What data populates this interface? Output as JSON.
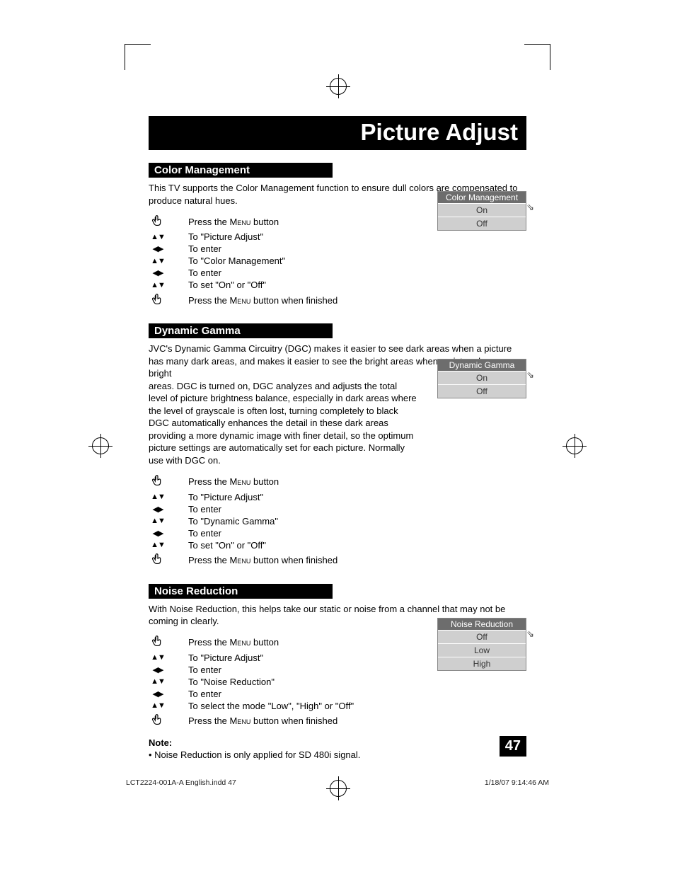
{
  "pageTitle": "Picture Adjust",
  "pageNumber": "47",
  "footer": {
    "file": "LCT2224-001A-A English.indd   47",
    "timestamp": "1/18/07   9:14:46 AM"
  },
  "sections": {
    "color": {
      "header": "Color Management",
      "desc": "This TV supports the Color Management function to ensure dull colors are compensated to produce natural hues.",
      "osd": {
        "title": "Color Management",
        "rows": [
          "On",
          "Off"
        ]
      },
      "steps": [
        {
          "icon": "hand",
          "prefix": "Press the ",
          "menu": "Menu",
          "suffix": " button"
        },
        {
          "icon": "ud",
          "text": "To \"Picture Adjust\""
        },
        {
          "icon": "lr",
          "text": "To enter"
        },
        {
          "icon": "ud",
          "text": "To \"Color Management\""
        },
        {
          "icon": "lr",
          "text": "To enter"
        },
        {
          "icon": "ud",
          "text": "To set \"On\" or \"Off\""
        },
        {
          "icon": "hand",
          "prefix": "Press the ",
          "menu": "Menu",
          "suffix": " button when finished"
        }
      ]
    },
    "gamma": {
      "header": "Dynamic Gamma",
      "desc1": "JVC's Dynamic Gamma Circuitry (DGC) makes it easier to see dark areas when a picture has many dark areas, and makes it easier to see the bright areas when a picture has many bright ",
      "desc2": "areas.  DGC is turned on, DGC analyzes and adjusts the total level of picture brightness balance, especially in dark areas where the level of grayscale is often lost, turning completely to black DGC automatically enhances the detail in these dark areas providing a more dynamic image with finer detail, so the optimum picture settings are automatically set for each picture.  Normally use with DGC on.",
      "osd": {
        "title": "Dynamic Gamma",
        "rows": [
          "On",
          "Off"
        ]
      },
      "steps": [
        {
          "icon": "hand",
          "prefix": "Press the ",
          "menu": "Menu",
          "suffix": " button"
        },
        {
          "icon": "ud",
          "text": "To \"Picture Adjust\""
        },
        {
          "icon": "lr",
          "text": "To enter"
        },
        {
          "icon": "ud",
          "text": "To \"Dynamic Gamma\""
        },
        {
          "icon": "lr",
          "text": "To enter"
        },
        {
          "icon": "ud",
          "text": "To set \"On\" or \"Off\""
        },
        {
          "icon": "hand",
          "prefix": "Press the ",
          "menu": "Menu",
          "suffix": " button when finished"
        }
      ]
    },
    "noise": {
      "header": "Noise Reduction",
      "desc": "With Noise Reduction, this helps take our static or noise from a channel that may not be coming in clearly.",
      "osd": {
        "title": "Noise Reduction",
        "rows": [
          "Off",
          "Low",
          "High"
        ]
      },
      "steps": [
        {
          "icon": "hand",
          "prefix": "Press the ",
          "menu": "Menu",
          "suffix": " button"
        },
        {
          "icon": "ud",
          "text": "To \"Picture Adjust\""
        },
        {
          "icon": "lr",
          "text": "To enter"
        },
        {
          "icon": "ud",
          "text": "To \"Noise Reduction\""
        },
        {
          "icon": "lr",
          "text": "To enter"
        },
        {
          "icon": "ud",
          "text": "To select the mode \"Low\", \"High\" or \"Off\""
        },
        {
          "icon": "hand",
          "prefix": "Press the ",
          "menu": "Menu",
          "suffix": " button when finished"
        }
      ],
      "noteLabel": "Note:",
      "noteText": "•  Noise Reduction is only applied for SD 480i signal."
    }
  }
}
